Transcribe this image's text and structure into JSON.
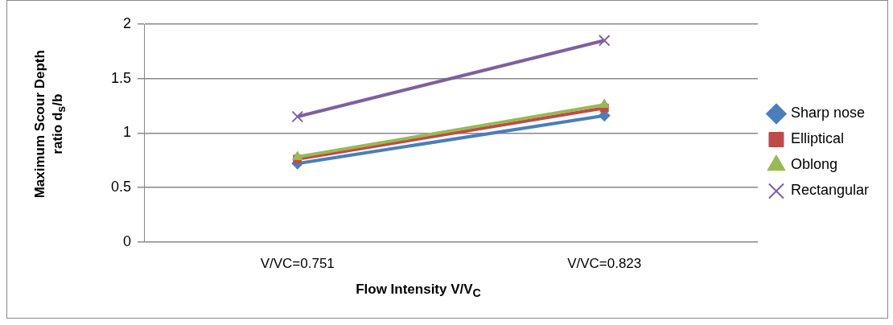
{
  "chart_data": {
    "type": "line",
    "xlabel": "Flow Intensity V/V$_{C}$",
    "ylabel": "Maximum Scour Depth ratio d$_{s}$/b",
    "categories": [
      "V/VC=0.751",
      "V/VC=0.823"
    ],
    "series": [
      {
        "name": "Sharp nose",
        "color": "#4a7ebb",
        "marker": "diamond",
        "values": [
          0.72,
          1.16
        ]
      },
      {
        "name": "Elliptical",
        "color": "#be4b48",
        "marker": "square",
        "values": [
          0.76,
          1.23
        ]
      },
      {
        "name": "Oblong",
        "color": "#98b954",
        "marker": "triangle",
        "values": [
          0.78,
          1.26
        ]
      },
      {
        "name": "Rectangular",
        "color": "#7d60a0",
        "marker": "cross",
        "values": [
          1.15,
          1.85
        ]
      }
    ],
    "ylim": [
      0,
      2
    ],
    "yticks": [
      0,
      0.5,
      1,
      1.5,
      2
    ],
    "grid": "y",
    "legend": "right",
    "line_style": "solid"
  }
}
